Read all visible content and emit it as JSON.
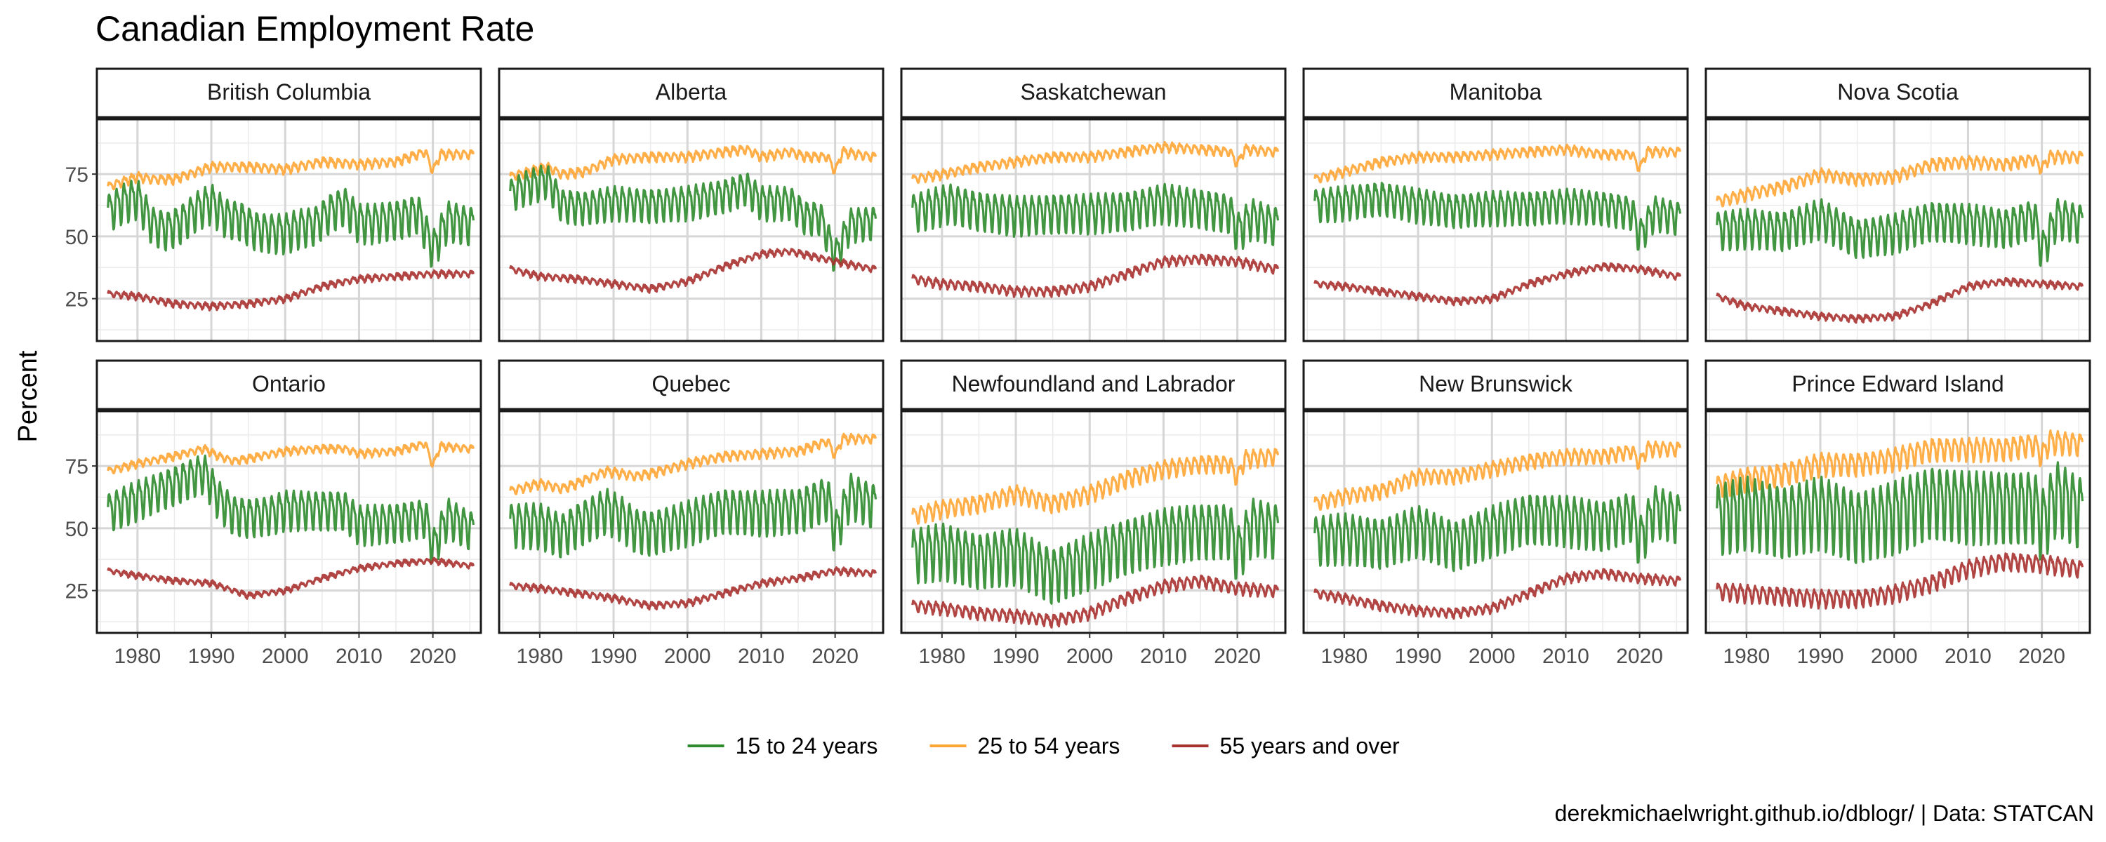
{
  "chart_data": {
    "type": "line",
    "title": "Canadian Employment Rate",
    "ylabel": "Percent",
    "xlabel": "",
    "caption": "derekmichaelwright.github.io/dblogr/ | Data: STATCAN",
    "xlim": [
      1974.5,
      2026.5
    ],
    "ylim": [
      8,
      97
    ],
    "x_ticks": [
      1980,
      1990,
      2000,
      2010,
      2020
    ],
    "y_ticks": [
      25,
      50,
      75
    ],
    "grid": true,
    "legend_position": "bottom",
    "series_info": [
      {
        "key": "youth",
        "name": "15 to 24 years",
        "color": "#2e8b2e"
      },
      {
        "key": "core",
        "name": "25 to 54 years",
        "color": "#ffa534"
      },
      {
        "key": "older",
        "name": "55 years and over",
        "color": "#a8312f"
      }
    ],
    "facets": [
      {
        "name": "British Columbia",
        "youth": {
          "x": [
            1976,
            1978,
            1980,
            1982,
            1984,
            1986,
            1988,
            1990,
            1992,
            1994,
            1996,
            1998,
            2000,
            2002,
            2004,
            2006,
            2008,
            2010,
            2012,
            2014,
            2016,
            2018,
            2020,
            2022,
            2025
          ],
          "y": [
            60,
            64,
            66,
            55,
            53,
            56,
            61,
            64,
            58,
            57,
            53,
            52,
            52,
            54,
            55,
            60,
            63,
            56,
            56,
            57,
            58,
            60,
            45,
            57,
            55
          ],
          "amp": 7
        },
        "core": {
          "x": [
            1976,
            1980,
            1982,
            1985,
            1990,
            1995,
            2000,
            2005,
            2010,
            2015,
            2019,
            2020,
            2021,
            2025
          ],
          "y": [
            70,
            74,
            73,
            73,
            78,
            78,
            77,
            80,
            79,
            80,
            84,
            76,
            83,
            83
          ],
          "amp": 1.5
        },
        "older": {
          "x": [
            1976,
            1980,
            1985,
            1990,
            1995,
            2000,
            2005,
            2010,
            2015,
            2020,
            2025
          ],
          "y": [
            27,
            26,
            23,
            22,
            23,
            25,
            30,
            33,
            34,
            35,
            35
          ],
          "amp": 1
        }
      },
      {
        "name": "Alberta",
        "youth": {
          "x": [
            1976,
            1978,
            1981,
            1983,
            1986,
            1990,
            1995,
            2000,
            2005,
            2008,
            2010,
            2014,
            2016,
            2018,
            2020,
            2022,
            2025
          ],
          "y": [
            67,
            70,
            73,
            63,
            62,
            64,
            63,
            64,
            67,
            70,
            64,
            64,
            58,
            58,
            42,
            55,
            56
          ],
          "amp": 6
        },
        "core": {
          "x": [
            1976,
            1981,
            1983,
            1986,
            1990,
            1995,
            2000,
            2005,
            2008,
            2010,
            2014,
            2016,
            2019,
            2020,
            2021,
            2025
          ],
          "y": [
            74,
            78,
            75,
            76,
            81,
            82,
            82,
            84,
            85,
            82,
            84,
            82,
            82,
            76,
            84,
            82
          ],
          "amp": 1.5
        },
        "older": {
          "x": [
            1976,
            1980,
            1985,
            1990,
            1995,
            2000,
            2005,
            2010,
            2014,
            2020,
            2025
          ],
          "y": [
            37,
            34,
            33,
            31,
            29,
            32,
            38,
            43,
            44,
            40,
            37
          ],
          "amp": 1
        }
      },
      {
        "name": "Saskatchewan",
        "youth": {
          "x": [
            1976,
            1981,
            1985,
            1990,
            1995,
            2000,
            2005,
            2010,
            2015,
            2019,
            2020,
            2022,
            2025
          ],
          "y": [
            60,
            64,
            61,
            59,
            60,
            60,
            61,
            64,
            62,
            60,
            52,
            58,
            55
          ],
          "amp": 7
        },
        "core": {
          "x": [
            1976,
            1980,
            1985,
            1990,
            1995,
            2000,
            2005,
            2010,
            2015,
            2019,
            2020,
            2021,
            2025
          ],
          "y": [
            73,
            75,
            78,
            80,
            82,
            82,
            84,
            86,
            85,
            84,
            79,
            85,
            84
          ],
          "amp": 1.5
        },
        "older": {
          "x": [
            1976,
            1980,
            1985,
            1990,
            1995,
            2000,
            2005,
            2010,
            2015,
            2020,
            2025
          ],
          "y": [
            33,
            31,
            30,
            28,
            28,
            30,
            35,
            40,
            41,
            40,
            37
          ],
          "amp": 1.5
        }
      },
      {
        "name": "Manitoba",
        "youth": {
          "x": [
            1976,
            1980,
            1985,
            1990,
            1995,
            2000,
            2005,
            2010,
            2015,
            2019,
            2020,
            2022,
            2025
          ],
          "y": [
            63,
            64,
            66,
            63,
            61,
            62,
            62,
            63,
            62,
            60,
            50,
            60,
            58
          ],
          "amp": 6
        },
        "core": {
          "x": [
            1976,
            1980,
            1985,
            1990,
            1995,
            2000,
            2005,
            2010,
            2015,
            2019,
            2020,
            2021,
            2025
          ],
          "y": [
            73,
            76,
            80,
            82,
            82,
            83,
            84,
            85,
            83,
            83,
            77,
            84,
            84
          ],
          "amp": 1.5
        },
        "older": {
          "x": [
            1976,
            1980,
            1985,
            1990,
            1995,
            2000,
            2005,
            2010,
            2015,
            2020,
            2025
          ],
          "y": [
            31,
            30,
            28,
            26,
            24,
            25,
            31,
            35,
            38,
            37,
            34
          ],
          "amp": 1
        }
      },
      {
        "name": "Nova Scotia",
        "youth": {
          "x": [
            1976,
            1980,
            1985,
            1990,
            1995,
            2000,
            2005,
            2010,
            2015,
            2019,
            2020,
            2022,
            2025
          ],
          "y": [
            53,
            54,
            53,
            58,
            50,
            52,
            57,
            56,
            54,
            58,
            44,
            58,
            56
          ],
          "amp": 7
        },
        "core": {
          "x": [
            1976,
            1980,
            1985,
            1990,
            1995,
            2000,
            2005,
            2010,
            2015,
            2019,
            2020,
            2021,
            2025
          ],
          "y": [
            64,
            67,
            70,
            75,
            73,
            74,
            79,
            80,
            79,
            81,
            77,
            82,
            82
          ],
          "amp": 2
        },
        "older": {
          "x": [
            1976,
            1980,
            1985,
            1990,
            1995,
            2000,
            2005,
            2010,
            2015,
            2020,
            2025
          ],
          "y": [
            26,
            22,
            20,
            18,
            17,
            18,
            23,
            30,
            32,
            31,
            30
          ],
          "amp": 1
        }
      },
      {
        "name": "Ontario",
        "youth": {
          "x": [
            1976,
            1980,
            1985,
            1989,
            1991,
            1993,
            1995,
            1998,
            2000,
            2005,
            2008,
            2010,
            2015,
            2019,
            2020,
            2022,
            2025
          ],
          "y": [
            57,
            62,
            68,
            73,
            62,
            56,
            55,
            56,
            58,
            58,
            58,
            52,
            53,
            55,
            42,
            55,
            50
          ],
          "amp": 7
        },
        "core": {
          "x": [
            1976,
            1980,
            1985,
            1989,
            1991,
            1993,
            1995,
            2000,
            2005,
            2008,
            2010,
            2015,
            2019,
            2020,
            2021,
            2025
          ],
          "y": [
            73,
            76,
            79,
            82,
            79,
            77,
            78,
            81,
            82,
            82,
            80,
            81,
            84,
            75,
            83,
            82
          ],
          "amp": 1.2
        },
        "older": {
          "x": [
            1976,
            1980,
            1985,
            1990,
            1995,
            2000,
            2005,
            2010,
            2015,
            2020,
            2025
          ],
          "y": [
            33,
            31,
            29,
            28,
            23,
            25,
            30,
            34,
            36,
            37,
            35
          ],
          "amp": 0.8
        }
      },
      {
        "name": "Quebec",
        "youth": {
          "x": [
            1976,
            1980,
            1983,
            1985,
            1989,
            1991,
            1993,
            1995,
            2000,
            2005,
            2010,
            2015,
            2019,
            2020,
            2022,
            2025
          ],
          "y": [
            52,
            52,
            48,
            52,
            58,
            55,
            50,
            49,
            53,
            58,
            57,
            58,
            63,
            48,
            64,
            60
          ],
          "amp": 8
        },
        "core": {
          "x": [
            1976,
            1980,
            1983,
            1985,
            1989,
            1991,
            1993,
            1995,
            2000,
            2005,
            2010,
            2015,
            2019,
            2020,
            2021,
            2025
          ],
          "y": [
            65,
            68,
            66,
            68,
            73,
            72,
            71,
            72,
            76,
            79,
            80,
            81,
            85,
            79,
            86,
            86
          ],
          "amp": 1.5
        },
        "older": {
          "x": [
            1976,
            1980,
            1985,
            1990,
            1995,
            2000,
            2005,
            2010,
            2015,
            2020,
            2025
          ],
          "y": [
            27,
            26,
            24,
            22,
            19,
            20,
            24,
            28,
            30,
            33,
            32
          ],
          "amp": 1
        }
      },
      {
        "name": "Newfoundland and Labrador",
        "youth": {
          "x": [
            1976,
            1980,
            1985,
            1990,
            1995,
            2000,
            2005,
            2010,
            2015,
            2019,
            2020,
            2022,
            2025
          ],
          "y": [
            40,
            42,
            38,
            40,
            32,
            38,
            44,
            48,
            50,
            50,
            40,
            52,
            50
          ],
          "amp": 10
        },
        "core": {
          "x": [
            1976,
            1980,
            1985,
            1990,
            1995,
            2000,
            2005,
            2010,
            2015,
            2019,
            2020,
            2021,
            2025
          ],
          "y": [
            55,
            58,
            60,
            64,
            60,
            64,
            70,
            74,
            76,
            76,
            70,
            78,
            79
          ],
          "amp": 3
        },
        "older": {
          "x": [
            1976,
            1980,
            1985,
            1990,
            1995,
            2000,
            2005,
            2010,
            2015,
            2020,
            2025
          ],
          "y": [
            19,
            18,
            16,
            15,
            13,
            16,
            22,
            27,
            29,
            26,
            25
          ],
          "amp": 2
        }
      },
      {
        "name": "New Brunswick",
        "youth": {
          "x": [
            1976,
            1980,
            1985,
            1990,
            1995,
            2000,
            2005,
            2010,
            2015,
            2019,
            2020,
            2022,
            2025
          ],
          "y": [
            46,
            47,
            45,
            50,
            44,
            50,
            55,
            54,
            52,
            56,
            45,
            58,
            55
          ],
          "amp": 9
        },
        "core": {
          "x": [
            1976,
            1980,
            1985,
            1990,
            1995,
            2000,
            2005,
            2010,
            2015,
            2019,
            2020,
            2021,
            2025
          ],
          "y": [
            60,
            63,
            65,
            71,
            71,
            74,
            77,
            79,
            79,
            81,
            76,
            82,
            82
          ],
          "amp": 2.5
        },
        "older": {
          "x": [
            1976,
            1980,
            1985,
            1990,
            1995,
            2000,
            2005,
            2010,
            2015,
            2020,
            2025
          ],
          "y": [
            24,
            22,
            19,
            17,
            16,
            18,
            24,
            30,
            32,
            30,
            29
          ],
          "amp": 1.5
        }
      },
      {
        "name": "Prince Edward Island",
        "youth": {
          "x": [
            1976,
            1980,
            1985,
            1990,
            1995,
            2000,
            2005,
            2010,
            2015,
            2019,
            2020,
            2022,
            2025
          ],
          "y": [
            55,
            58,
            54,
            58,
            52,
            56,
            62,
            60,
            60,
            60,
            52,
            64,
            58
          ],
          "amp": 13
        },
        "core": {
          "x": [
            1976,
            1980,
            1985,
            1990,
            1995,
            2000,
            2005,
            2010,
            2015,
            2019,
            2020,
            2021,
            2025
          ],
          "y": [
            67,
            70,
            72,
            76,
            76,
            78,
            82,
            82,
            82,
            84,
            79,
            85,
            84
          ],
          "amp": 4
        },
        "older": {
          "x": [
            1976,
            1980,
            1985,
            1990,
            1995,
            2000,
            2005,
            2010,
            2015,
            2020,
            2025
          ],
          "y": [
            25,
            24,
            23,
            22,
            22,
            24,
            28,
            34,
            37,
            36,
            34
          ],
          "amp": 3
        }
      }
    ]
  }
}
